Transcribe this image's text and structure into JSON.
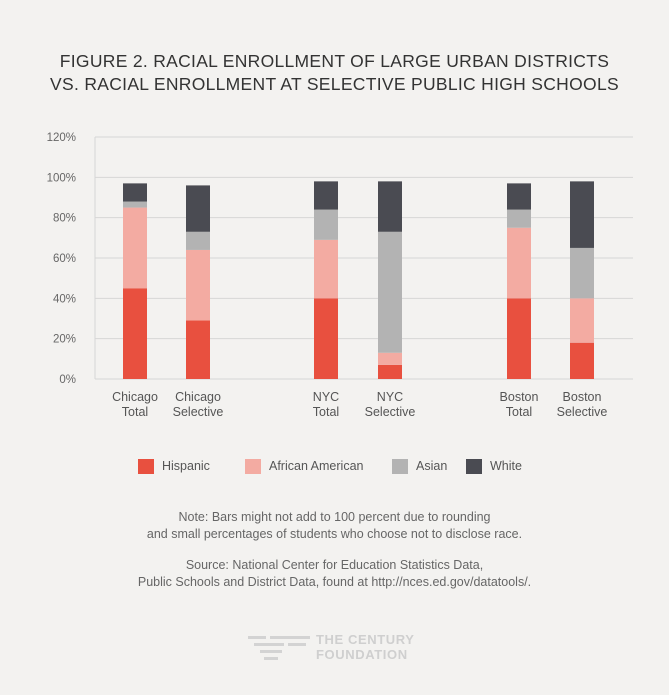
{
  "chart_data": {
    "type": "bar",
    "stacked": true,
    "title_lines": [
      "FIGURE 2. RACIAL ENROLLMENT OF LARGE URBAN DISTRICTS",
      "VS. RACIAL ENROLLMENT AT SELECTIVE PUBLIC HIGH SCHOOLS"
    ],
    "categories": [
      [
        "Chicago",
        "Total"
      ],
      [
        "Chicago",
        "Selective"
      ],
      [
        "NYC",
        "Total"
      ],
      [
        "NYC",
        "Selective"
      ],
      [
        "Boston",
        "Total"
      ],
      [
        "Boston",
        "Selective"
      ]
    ],
    "y_ticks": [
      "0%",
      "20%",
      "40%",
      "60%",
      "80%",
      "100%",
      "120%"
    ],
    "ylim": [
      0,
      120
    ],
    "grid": true,
    "legend_position": "bottom",
    "series": [
      {
        "name": "Hispanic",
        "color": "#e8503f",
        "values": [
          45,
          29,
          40,
          7,
          40,
          18
        ]
      },
      {
        "name": "African American",
        "color": "#f3aba2",
        "values": [
          40,
          35,
          29,
          6,
          35,
          22
        ]
      },
      {
        "name": "Asian",
        "color": "#b3b3b3",
        "values": [
          3,
          9,
          15,
          60,
          9,
          25
        ]
      },
      {
        "name": "White",
        "color": "#4a4b52",
        "values": [
          9,
          23,
          14,
          25,
          13,
          33
        ]
      }
    ]
  },
  "note_lines": [
    "Note: Bars might not add to 100 percent due to rounding",
    "and small percentages of students who choose not to disclose race."
  ],
  "source_lines": [
    "Source: National Center for Education Statistics Data,",
    "Public Schools and District Data, found at http://nces.ed.gov/datatools/."
  ],
  "logo": {
    "line1": "THE CENTURY",
    "line2": "FOUNDATION"
  }
}
